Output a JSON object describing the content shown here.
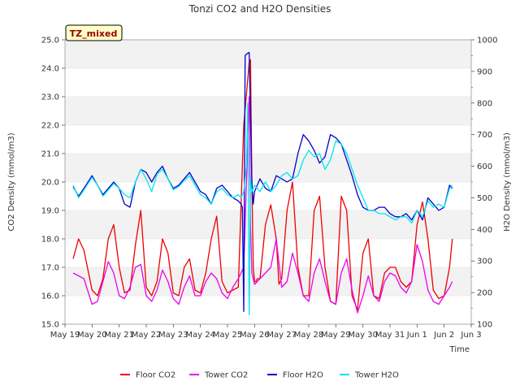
{
  "chart_data": {
    "type": "line",
    "title": "Tonzi CO2 and H2O Densities",
    "site_badge": "TZ_mixed",
    "xlabel": "Time",
    "ylabel_left": "CO2 Density (mmol/m3)",
    "ylabel_right": "H2O Density (mmol/m3)",
    "ylim_left": [
      15.0,
      25.0
    ],
    "ylim_right": [
      100,
      1000
    ],
    "xlim_days": [
      0,
      15
    ],
    "grid": "horizontal bands",
    "x_tick_labels": [
      "May 19",
      "May 20",
      "May 21",
      "May 22",
      "May 23",
      "May 24",
      "May 25",
      "May 26",
      "May 27",
      "May 28",
      "May 29",
      "May 30",
      "May 31",
      "Jun 1",
      "Jun 2",
      "Jun 3"
    ],
    "y_left_ticks": [
      "15.0",
      "16.0",
      "17.0",
      "18.0",
      "19.0",
      "20.0",
      "21.0",
      "22.0",
      "23.0",
      "24.0",
      "25.0"
    ],
    "y_right_ticks": [
      "100",
      "200",
      "300",
      "400",
      "500",
      "600",
      "700",
      "800",
      "900",
      "1000"
    ],
    "legend_position": "bottom",
    "series": [
      {
        "name": "Floor CO2",
        "axis": "left",
        "color": "#ee0000",
        "x": [
          0.3,
          0.5,
          0.7,
          1.0,
          1.2,
          1.4,
          1.6,
          1.8,
          2.0,
          2.2,
          2.4,
          2.6,
          2.8,
          3.0,
          3.2,
          3.4,
          3.6,
          3.8,
          4.0,
          4.2,
          4.4,
          4.6,
          4.8,
          5.0,
          5.2,
          5.4,
          5.6,
          5.8,
          6.0,
          6.2,
          6.4,
          6.6,
          6.8,
          6.85,
          6.9,
          6.95,
          7.0,
          7.05,
          7.1,
          7.2,
          7.4,
          7.6,
          7.8,
          7.9,
          8.0,
          8.2,
          8.4,
          8.6,
          8.8,
          9.0,
          9.2,
          9.4,
          9.6,
          9.8,
          10.0,
          10.2,
          10.4,
          10.6,
          10.8,
          11.0,
          11.2,
          11.4,
          11.6,
          11.8,
          12.0,
          12.2,
          12.4,
          12.6,
          12.8,
          13.0,
          13.2,
          13.4,
          13.6,
          13.8,
          14.0,
          14.2,
          14.3
        ],
        "values": [
          17.3,
          18.0,
          17.6,
          16.2,
          16.0,
          16.6,
          18.0,
          18.5,
          17.0,
          16.1,
          16.2,
          17.8,
          19.0,
          16.3,
          16.0,
          16.5,
          18.0,
          17.5,
          16.1,
          16.0,
          17.0,
          17.3,
          16.2,
          16.1,
          16.8,
          18.0,
          18.8,
          16.5,
          16.1,
          16.2,
          16.3,
          22.0,
          24.2,
          24.3,
          20.0,
          17.0,
          16.5,
          16.5,
          16.6,
          16.6,
          18.5,
          19.2,
          18.0,
          16.4,
          16.6,
          19.0,
          20.0,
          17.0,
          16.0,
          16.0,
          19.0,
          19.5,
          17.0,
          15.8,
          15.7,
          19.5,
          19.0,
          16.0,
          15.5,
          17.5,
          18.0,
          16.0,
          15.9,
          16.8,
          17.0,
          17.0,
          16.5,
          16.3,
          16.5,
          18.5,
          19.3,
          18.0,
          16.2,
          15.9,
          16.0,
          17.0,
          18.0
        ]
      },
      {
        "name": "Tower CO2",
        "axis": "left",
        "color": "#ee00ee",
        "x": [
          0.3,
          0.5,
          0.7,
          1.0,
          1.2,
          1.4,
          1.6,
          1.8,
          2.0,
          2.2,
          2.4,
          2.6,
          2.8,
          3.0,
          3.2,
          3.4,
          3.6,
          3.8,
          4.0,
          4.2,
          4.4,
          4.6,
          4.8,
          5.0,
          5.2,
          5.4,
          5.6,
          5.8,
          6.0,
          6.2,
          6.4,
          6.6,
          6.8,
          6.85,
          6.9,
          7.0,
          7.1,
          7.2,
          7.4,
          7.6,
          7.8,
          8.0,
          8.2,
          8.4,
          8.6,
          8.8,
          9.0,
          9.2,
          9.4,
          9.6,
          9.8,
          10.0,
          10.2,
          10.4,
          10.6,
          10.8,
          11.0,
          11.2,
          11.4,
          11.6,
          11.8,
          12.0,
          12.2,
          12.4,
          12.6,
          12.8,
          13.0,
          13.2,
          13.4,
          13.6,
          13.8,
          14.0,
          14.2,
          14.3
        ],
        "values": [
          16.8,
          16.7,
          16.6,
          15.7,
          15.8,
          16.5,
          17.2,
          16.8,
          16.0,
          15.9,
          16.3,
          17.0,
          17.1,
          16.0,
          15.8,
          16.2,
          16.9,
          16.5,
          15.9,
          15.7,
          16.3,
          16.7,
          16.0,
          16.0,
          16.5,
          16.8,
          16.6,
          16.1,
          15.9,
          16.3,
          16.6,
          17.0,
          23.0,
          18.5,
          16.8,
          16.4,
          16.5,
          16.6,
          16.8,
          17.0,
          18.0,
          16.3,
          16.5,
          17.5,
          16.8,
          16.0,
          15.8,
          16.8,
          17.3,
          16.5,
          15.8,
          15.7,
          16.8,
          17.3,
          16.2,
          15.4,
          16.0,
          16.7,
          16.0,
          15.8,
          16.5,
          16.8,
          16.7,
          16.3,
          16.1,
          16.5,
          17.8,
          17.2,
          16.2,
          15.8,
          15.7,
          16.0,
          16.3,
          16.5
        ]
      },
      {
        "name": "Floor H2O",
        "axis": "right",
        "color": "#0000cc",
        "x": [
          0.3,
          0.5,
          0.7,
          1.0,
          1.2,
          1.4,
          1.6,
          1.8,
          2.0,
          2.2,
          2.4,
          2.6,
          2.8,
          3.0,
          3.2,
          3.4,
          3.6,
          3.8,
          4.0,
          4.2,
          4.4,
          4.6,
          4.8,
          5.0,
          5.2,
          5.4,
          5.6,
          5.8,
          6.0,
          6.2,
          6.4,
          6.5,
          6.55,
          6.6,
          6.65,
          6.7,
          6.8,
          6.9,
          6.95,
          7.0,
          7.2,
          7.4,
          7.6,
          7.8,
          8.0,
          8.2,
          8.4,
          8.6,
          8.8,
          9.0,
          9.2,
          9.4,
          9.6,
          9.8,
          10.0,
          10.2,
          10.4,
          10.6,
          10.8,
          11.0,
          11.2,
          11.4,
          11.6,
          11.8,
          12.0,
          12.2,
          12.4,
          12.6,
          12.8,
          13.0,
          13.2,
          13.4,
          13.6,
          13.8,
          14.0,
          14.2,
          14.3
        ],
        "values": [
          535,
          505,
          530,
          570,
          540,
          510,
          530,
          550,
          530,
          480,
          470,
          550,
          590,
          580,
          550,
          580,
          600,
          560,
          530,
          540,
          560,
          580,
          550,
          520,
          510,
          480,
          530,
          540,
          520,
          500,
          490,
          480,
          470,
          140,
          950,
          955,
          960,
          550,
          480,
          520,
          560,
          530,
          520,
          570,
          560,
          550,
          560,
          640,
          700,
          680,
          650,
          610,
          630,
          700,
          690,
          670,
          620,
          570,
          510,
          470,
          460,
          460,
          470,
          470,
          450,
          440,
          440,
          450,
          430,
          460,
          430,
          500,
          480,
          460,
          470,
          540,
          530
        ]
      },
      {
        "name": "Tower H2O",
        "axis": "right",
        "color": "#00e5ee",
        "x": [
          0.3,
          0.5,
          0.7,
          1.0,
          1.2,
          1.4,
          1.6,
          1.8,
          2.0,
          2.2,
          2.4,
          2.6,
          2.8,
          3.0,
          3.2,
          3.4,
          3.6,
          3.8,
          4.0,
          4.2,
          4.4,
          4.6,
          4.8,
          5.0,
          5.2,
          5.4,
          5.6,
          5.8,
          6.0,
          6.2,
          6.4,
          6.5,
          6.6,
          6.7,
          6.75,
          6.8,
          6.85,
          6.9,
          7.0,
          7.2,
          7.4,
          7.6,
          7.8,
          8.0,
          8.2,
          8.4,
          8.6,
          8.8,
          9.0,
          9.2,
          9.4,
          9.6,
          9.8,
          10.0,
          10.2,
          10.4,
          10.6,
          10.8,
          11.0,
          11.2,
          11.4,
          11.6,
          11.8,
          12.0,
          12.2,
          12.4,
          12.6,
          12.8,
          13.0,
          13.2,
          13.4,
          13.6,
          13.8,
          14.0,
          14.2,
          14.3
        ],
        "values": [
          540,
          500,
          525,
          565,
          540,
          505,
          525,
          545,
          530,
          510,
          500,
          550,
          590,
          560,
          520,
          575,
          590,
          560,
          525,
          535,
          555,
          570,
          540,
          510,
          500,
          480,
          520,
          530,
          510,
          500,
          510,
          500,
          520,
          600,
          800,
          130,
          560,
          520,
          540,
          520,
          550,
          520,
          540,
          570,
          580,
          560,
          570,
          620,
          650,
          630,
          640,
          590,
          620,
          680,
          670,
          640,
          590,
          540,
          500,
          460,
          460,
          450,
          450,
          440,
          430,
          440,
          440,
          420,
          460,
          440,
          490,
          470,
          480,
          470,
          530,
          540
        ]
      }
    ]
  }
}
